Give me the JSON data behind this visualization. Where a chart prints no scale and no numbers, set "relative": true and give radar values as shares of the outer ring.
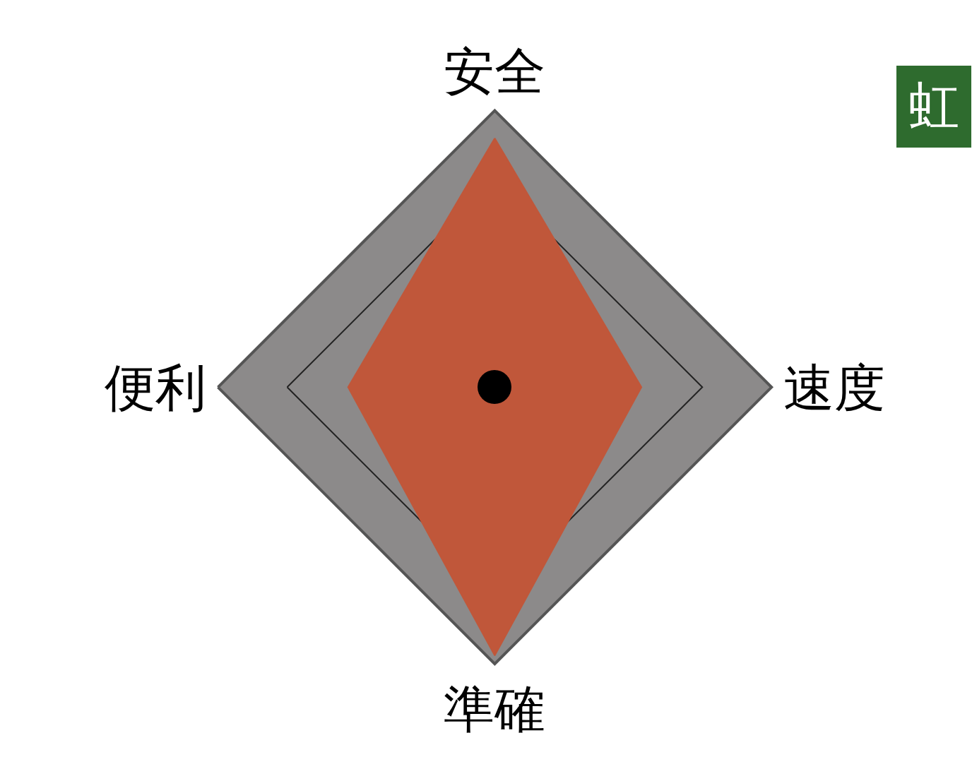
{
  "chart_data": {
    "type": "radar",
    "relative": true,
    "categories": [
      "安全",
      "速度",
      "準確",
      "便利"
    ],
    "series": [
      {
        "color": "#c0573a",
        "values": [
          0.9,
          0.53,
          0.97,
          0.53
        ]
      }
    ],
    "annotations": [
      "虹"
    ]
  }
}
